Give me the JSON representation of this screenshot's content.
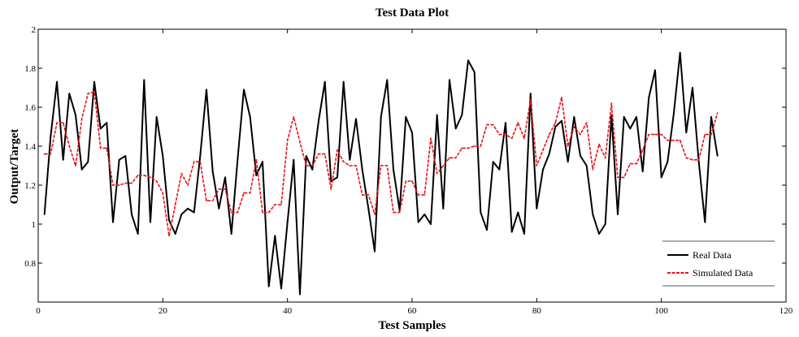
{
  "chart_data": {
    "type": "line",
    "title": "Test Data Plot",
    "xlabel": "Test Samples",
    "ylabel": "Output/Target",
    "xlim": [
      0,
      120
    ],
    "ylim": [
      0.6,
      2
    ],
    "x_ticks": [
      "0",
      "20",
      "40",
      "60",
      "80",
      "100",
      "120"
    ],
    "y_ticks": [
      "0.8",
      "1",
      "1.2",
      "1.4",
      "1.6",
      "1.8",
      "2"
    ],
    "grid": false,
    "legend_position": "bottom-right",
    "series": [
      {
        "name": "Real Data",
        "color": "#000000",
        "x": [
          1,
          2,
          3,
          4,
          5,
          6,
          7,
          8,
          9,
          10,
          11,
          12,
          13,
          14,
          15,
          16,
          17,
          18,
          19,
          20,
          21,
          22,
          23,
          24,
          25,
          26,
          27,
          28,
          29,
          30,
          31,
          32,
          33,
          34,
          35,
          36,
          37,
          38,
          39,
          40,
          41,
          42,
          43,
          44,
          45,
          46,
          47,
          48,
          49,
          50,
          51,
          52,
          53,
          54,
          55,
          56,
          57,
          58,
          59,
          60,
          61,
          62,
          63,
          64,
          65,
          66,
          67,
          68,
          69,
          70,
          71,
          72,
          73,
          74,
          75,
          76,
          77,
          78,
          79,
          80,
          81,
          82,
          83,
          84,
          85,
          86,
          87,
          88,
          89,
          90,
          91,
          92,
          93,
          94,
          95,
          96,
          97,
          98,
          99,
          100,
          101,
          102,
          103,
          104,
          105,
          106,
          107,
          108,
          109
        ],
        "values": [
          1.05,
          1.45,
          1.73,
          1.33,
          1.67,
          1.56,
          1.28,
          1.32,
          1.73,
          1.49,
          1.52,
          1.01,
          1.33,
          1.35,
          1.05,
          0.95,
          1.74,
          1.01,
          1.55,
          1.35,
          1.02,
          0.95,
          1.05,
          1.08,
          1.06,
          1.35,
          1.69,
          1.27,
          1.08,
          1.24,
          0.95,
          1.33,
          1.69,
          1.55,
          1.25,
          1.32,
          0.68,
          0.94,
          0.67,
          1.01,
          1.33,
          0.64,
          1.35,
          1.28,
          1.53,
          1.73,
          1.22,
          1.24,
          1.73,
          1.33,
          1.54,
          1.28,
          1.08,
          0.86,
          1.55,
          1.74,
          1.28,
          1.07,
          1.55,
          1.47,
          1.01,
          1.05,
          1.0,
          1.56,
          1.08,
          1.74,
          1.49,
          1.56,
          1.84,
          1.78,
          1.06,
          0.97,
          1.32,
          1.28,
          1.52,
          0.96,
          1.06,
          0.95,
          1.67,
          1.08,
          1.28,
          1.36,
          1.5,
          1.53,
          1.32,
          1.55,
          1.35,
          1.3,
          1.05,
          0.95,
          1.0,
          1.56,
          1.05,
          1.55,
          1.49,
          1.55,
          1.27,
          1.65,
          1.79,
          1.24,
          1.32,
          1.57,
          1.88,
          1.47,
          1.7,
          1.32,
          1.01,
          1.55,
          1.35
        ]
      },
      {
        "name": "Simulated Data",
        "color": "#e8141a",
        "x": [
          1,
          2,
          3,
          4,
          5,
          6,
          7,
          8,
          9,
          10,
          11,
          12,
          13,
          14,
          15,
          16,
          17,
          18,
          19,
          20,
          21,
          22,
          23,
          24,
          25,
          26,
          27,
          28,
          29,
          30,
          31,
          32,
          33,
          34,
          35,
          36,
          37,
          38,
          39,
          40,
          41,
          42,
          43,
          44,
          45,
          46,
          47,
          48,
          49,
          50,
          51,
          52,
          53,
          54,
          55,
          56,
          57,
          58,
          59,
          60,
          61,
          62,
          63,
          64,
          65,
          66,
          67,
          68,
          69,
          70,
          71,
          72,
          73,
          74,
          75,
          76,
          77,
          78,
          79,
          80,
          81,
          82,
          83,
          84,
          85,
          86,
          87,
          88,
          89,
          90,
          91,
          92,
          93,
          94,
          95,
          96,
          97,
          98,
          99,
          100,
          101,
          102,
          103,
          104,
          105,
          106,
          107,
          108,
          109
        ],
        "values": [
          1.36,
          1.36,
          1.52,
          1.52,
          1.4,
          1.3,
          1.54,
          1.67,
          1.68,
          1.39,
          1.39,
          1.2,
          1.2,
          1.21,
          1.21,
          1.25,
          1.25,
          1.24,
          1.22,
          1.16,
          0.94,
          1.1,
          1.26,
          1.2,
          1.32,
          1.32,
          1.12,
          1.12,
          1.18,
          1.18,
          1.06,
          1.06,
          1.16,
          1.16,
          1.33,
          1.06,
          1.06,
          1.1,
          1.1,
          1.43,
          1.55,
          1.42,
          1.3,
          1.3,
          1.36,
          1.36,
          1.18,
          1.38,
          1.32,
          1.3,
          1.3,
          1.15,
          1.15,
          1.05,
          1.3,
          1.3,
          1.06,
          1.06,
          1.22,
          1.22,
          1.15,
          1.15,
          1.44,
          1.26,
          1.3,
          1.34,
          1.34,
          1.39,
          1.39,
          1.4,
          1.4,
          1.51,
          1.51,
          1.46,
          1.46,
          1.44,
          1.52,
          1.44,
          1.64,
          1.3,
          1.38,
          1.46,
          1.52,
          1.65,
          1.4,
          1.5,
          1.46,
          1.52,
          1.28,
          1.41,
          1.34,
          1.62,
          1.24,
          1.24,
          1.31,
          1.31,
          1.38,
          1.46,
          1.46,
          1.46,
          1.43,
          1.43,
          1.43,
          1.34,
          1.33,
          1.33,
          1.46,
          1.46,
          1.57
        ]
      }
    ]
  }
}
